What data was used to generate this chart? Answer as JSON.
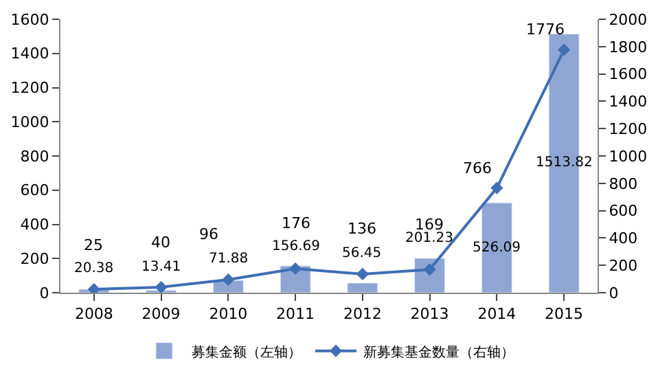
{
  "chart_data": {
    "type": "bar",
    "categories": [
      "2008",
      "2009",
      "2010",
      "2011",
      "2012",
      "2013",
      "2014",
      "2015"
    ],
    "series": [
      {
        "name": "募集金额（左轴）",
        "color": "#8fa6d4",
        "values": [
          20.38,
          13.41,
          71.88,
          156.69,
          56.45,
          201.23,
          526.09,
          1513.82
        ]
      },
      {
        "name": "新募集基金数量（右轴）",
        "type": "line",
        "axis": "y2",
        "color": "#3f6fb4",
        "values": [
          25,
          40,
          96,
          176,
          136,
          169,
          766,
          1776
        ]
      }
    ],
    "ylim": [
      0,
      1600
    ],
    "yticks": [
      0,
      200,
      400,
      600,
      800,
      1000,
      1200,
      1400,
      1600
    ],
    "y2lim": [
      0,
      2000
    ],
    "y2ticks": [
      0,
      200,
      400,
      600,
      800,
      1000,
      1200,
      1400,
      1600,
      1800,
      2000
    ],
    "data_labels": true,
    "legend": "bottom",
    "marker": "diamond"
  }
}
